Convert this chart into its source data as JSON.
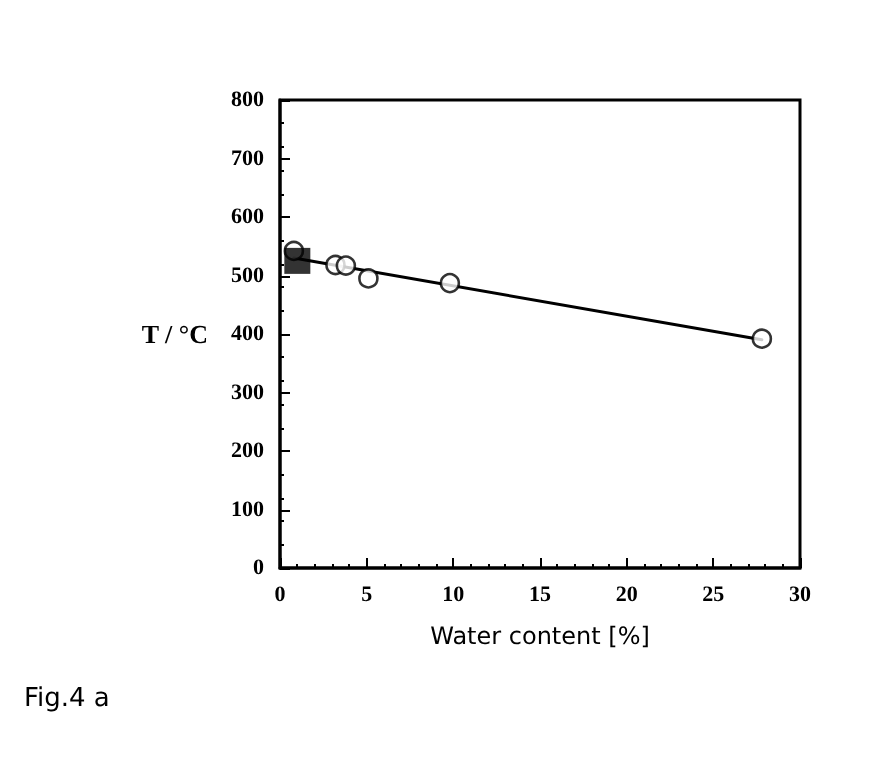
{
  "chart_data": {
    "type": "scatter",
    "xlabel": "Water content [%]",
    "ylabel": "T / °C",
    "annotations": [
      "Fig.4 a"
    ],
    "xlim": [
      0,
      30
    ],
    "xticks": [
      0,
      5,
      10,
      15,
      20,
      25,
      30
    ],
    "ylim": [
      0,
      800
    ],
    "yticks": [
      0,
      100,
      200,
      300,
      400,
      500,
      600,
      700,
      800
    ],
    "grid": false,
    "series": [
      {
        "type": "line",
        "color": "#000000",
        "marker": "none",
        "line_style": "solid",
        "x": [
          0.8,
          27.8
        ],
        "values": [
          530,
          390
        ]
      },
      {
        "color": "#000000",
        "marker": "circle",
        "x": [
          0.8,
          3.2,
          3.8,
          5.1,
          9.8,
          27.8
        ],
        "values": [
          542,
          518,
          517,
          495,
          487,
          392
        ]
      },
      {
        "color": "#000000",
        "marker": "square",
        "x": [
          1
        ],
        "values": [
          525
        ]
      }
    ]
  }
}
